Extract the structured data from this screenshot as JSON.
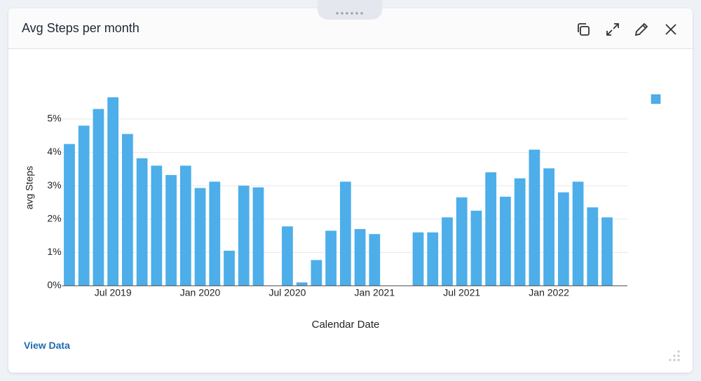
{
  "header": {
    "title": "Avg Steps per month"
  },
  "link": "View Data",
  "chart_data": {
    "type": "bar",
    "y_label": "avg Steps",
    "x_label": "Calendar Date",
    "color": "#4daeea",
    "categories": [
      null,
      null,
      null,
      "Jul 2019",
      null,
      null,
      null,
      null,
      null,
      "Jan 2020",
      null,
      null,
      null,
      null,
      null,
      "Jul 2020",
      null,
      null,
      null,
      null,
      null,
      "Jan 2021",
      null,
      null,
      null,
      null,
      null,
      "Jul 2021",
      null,
      null,
      null,
      null,
      null,
      "Jan 2022",
      null,
      null,
      null,
      null
    ],
    "values": [
      4.25,
      4.8,
      5.3,
      5.65,
      4.55,
      3.82,
      3.6,
      3.32,
      3.6,
      2.93,
      3.12,
      1.05,
      3.0,
      2.95,
      null,
      1.78,
      0.1,
      0.77,
      1.65,
      3.12,
      1.7,
      1.55,
      null,
      null,
      1.6,
      1.6,
      2.05,
      2.65,
      2.25,
      3.4,
      2.67,
      3.22,
      4.08,
      3.52,
      2.8,
      3.12,
      2.35,
      2.05
    ],
    "ylim": [
      0,
      5.9
    ],
    "yticks": [
      {
        "value": 0,
        "label": "0%"
      },
      {
        "value": 1,
        "label": "1%"
      },
      {
        "value": 2,
        "label": "2%"
      },
      {
        "value": 3,
        "label": "3%"
      },
      {
        "value": 4,
        "label": "4%"
      },
      {
        "value": 5,
        "label": "5%"
      }
    ],
    "grid": true
  }
}
